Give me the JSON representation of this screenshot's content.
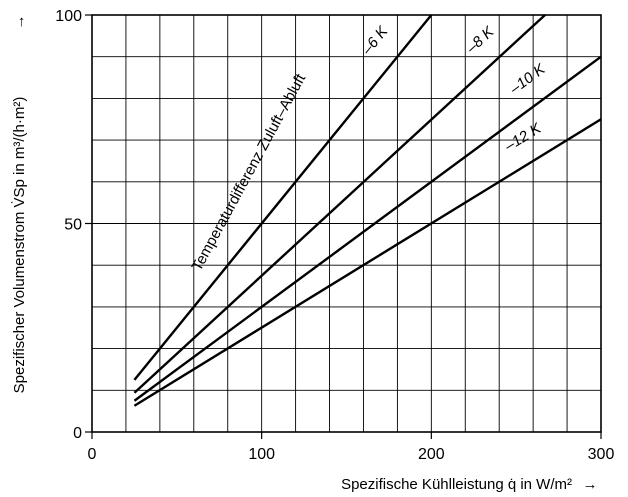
{
  "chart_data": {
    "type": "line",
    "xlabel": "Spezifische Kühlleistung q̇ in W/m²",
    "ylabel": "Spezifischer Volumenstrom V̇Sp in m³/(h·m²)",
    "xlim": [
      0,
      300
    ],
    "ylim": [
      0,
      100
    ],
    "x_ticks": [
      "0",
      "100",
      "200",
      "300"
    ],
    "y_ticks": [
      "0",
      "50",
      "100"
    ],
    "grid": true,
    "annotation": "Temperaturdifferenz Zuluft–Abluft",
    "series": [
      {
        "name": "–6 K",
        "x": [
          25,
          200
        ],
        "y": [
          12.5,
          100
        ]
      },
      {
        "name": "–8 K",
        "x": [
          25,
          267
        ],
        "y": [
          9.4,
          100
        ]
      },
      {
        "name": "–10 K",
        "x": [
          25,
          300
        ],
        "y": [
          7.5,
          90
        ]
      },
      {
        "name": "–12 K",
        "x": [
          25,
          300
        ],
        "y": [
          6.3,
          75
        ]
      }
    ]
  },
  "arrow_glyph": "→"
}
